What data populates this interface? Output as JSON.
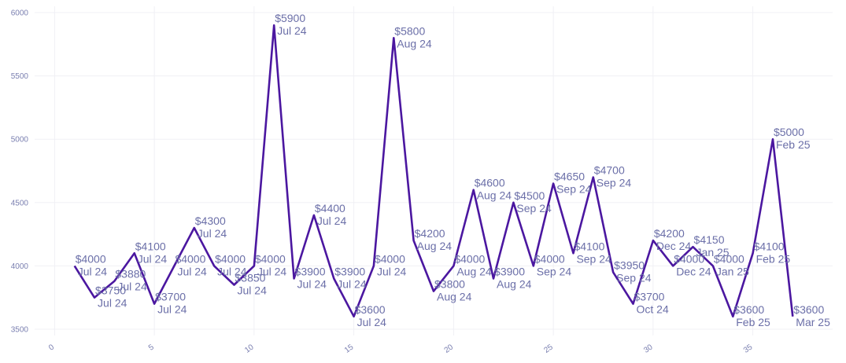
{
  "chart_data": {
    "type": "line",
    "title": "",
    "xlabel": "",
    "ylabel": "",
    "xlim": [
      -1,
      39
    ],
    "ylim": [
      3450,
      6050
    ],
    "x_ticks": [
      0,
      5,
      10,
      15,
      20,
      25,
      30,
      35
    ],
    "y_ticks": [
      3500,
      4000,
      4500,
      5000,
      5500,
      6000
    ],
    "grid": true,
    "legend": "none",
    "line_color": "#4b17a0",
    "series": [
      {
        "points": [
          {
            "x": 1,
            "y": 4000,
            "price": "$4000",
            "month": "Jul 24"
          },
          {
            "x": 2,
            "y": 3750,
            "price": "$3750",
            "month": "Jul 24"
          },
          {
            "x": 3,
            "y": 3880,
            "price": "$3880",
            "month": "Jul 24"
          },
          {
            "x": 4,
            "y": 4100,
            "price": "$4100",
            "month": "Jul 24"
          },
          {
            "x": 5,
            "y": 3700,
            "price": "$3700",
            "month": "Jul 24"
          },
          {
            "x": 6,
            "y": 4000,
            "price": "$4000",
            "month": "Jul 24"
          },
          {
            "x": 7,
            "y": 4300,
            "price": "$4300",
            "month": "Jul 24"
          },
          {
            "x": 8,
            "y": 4000,
            "price": "$4000",
            "month": "Jul 24"
          },
          {
            "x": 9,
            "y": 3850,
            "price": "$3850",
            "month": "Jul 24"
          },
          {
            "x": 10,
            "y": 4000,
            "price": "$4000",
            "month": "Jul 24"
          },
          {
            "x": 11,
            "y": 5900,
            "price": "$5900",
            "month": "Jul 24"
          },
          {
            "x": 12,
            "y": 3900,
            "price": "$3900",
            "month": "Jul 24"
          },
          {
            "x": 13,
            "y": 4400,
            "price": "$4400",
            "month": "Jul 24"
          },
          {
            "x": 14,
            "y": 3900,
            "price": "$3900",
            "month": "Jul 24"
          },
          {
            "x": 15,
            "y": 3600,
            "price": "$3600",
            "month": "Jul 24"
          },
          {
            "x": 16,
            "y": 4000,
            "price": "$4000",
            "month": "Jul 24"
          },
          {
            "x": 17,
            "y": 5800,
            "price": "$5800",
            "month": "Aug 24"
          },
          {
            "x": 18,
            "y": 4200,
            "price": "$4200",
            "month": "Aug 24"
          },
          {
            "x": 19,
            "y": 3800,
            "price": "$3800",
            "month": "Aug 24"
          },
          {
            "x": 20,
            "y": 4000,
            "price": "$4000",
            "month": "Aug 24"
          },
          {
            "x": 21,
            "y": 4600,
            "price": "$4600",
            "month": "Aug 24"
          },
          {
            "x": 22,
            "y": 3900,
            "price": "$3900",
            "month": "Aug 24"
          },
          {
            "x": 23,
            "y": 4500,
            "price": "$4500",
            "month": "Sep 24"
          },
          {
            "x": 24,
            "y": 4000,
            "price": "$4000",
            "month": "Sep 24"
          },
          {
            "x": 25,
            "y": 4650,
            "price": "$4650",
            "month": "Sep 24"
          },
          {
            "x": 26,
            "y": 4100,
            "price": "$4100",
            "month": "Sep 24"
          },
          {
            "x": 27,
            "y": 4700,
            "price": "$4700",
            "month": "Sep 24"
          },
          {
            "x": 28,
            "y": 3950,
            "price": "$3950",
            "month": "Sep 24"
          },
          {
            "x": 29,
            "y": 3700,
            "price": "$3700",
            "month": "Oct 24"
          },
          {
            "x": 30,
            "y": 4200,
            "price": "$4200",
            "month": "Dec 24"
          },
          {
            "x": 31,
            "y": 4000,
            "price": "$4000",
            "month": "Dec 24"
          },
          {
            "x": 32,
            "y": 4150,
            "price": "$4150",
            "month": "Jan 25"
          },
          {
            "x": 33,
            "y": 4000,
            "price": "$4000",
            "month": "Jan 25"
          },
          {
            "x": 34,
            "y": 3600,
            "price": "$3600",
            "month": "Feb 25"
          },
          {
            "x": 35,
            "y": 4100,
            "price": "$4100",
            "month": "Feb 25"
          },
          {
            "x": 36,
            "y": 5000,
            "price": "$5000",
            "month": "Feb 25"
          },
          {
            "x": 37,
            "y": 3600,
            "price": "$3600",
            "month": "Mar 25"
          }
        ]
      }
    ]
  }
}
